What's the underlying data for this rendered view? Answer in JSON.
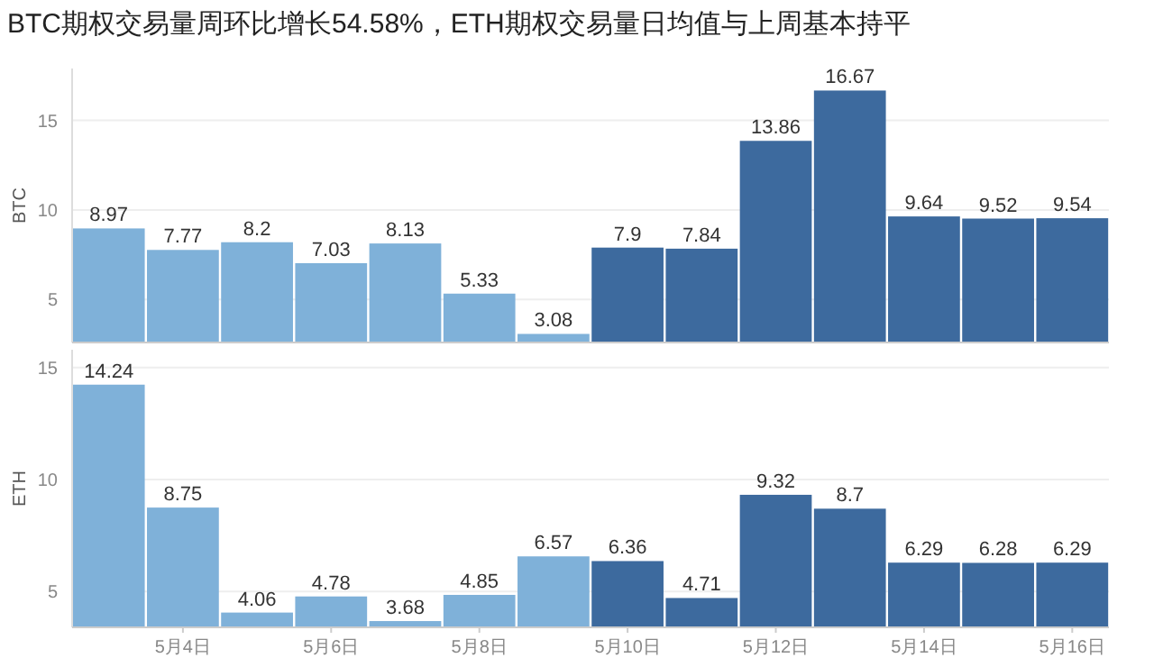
{
  "chart_data": [
    {
      "type": "bar",
      "title": "BTC期权交易量周环比增长54.58%，ETH期权交易量日均值与上周基本持平",
      "ylabel": "BTC",
      "categories": [
        null,
        null,
        null,
        null,
        null,
        null,
        null,
        null,
        null,
        null,
        null,
        null,
        null,
        null
      ],
      "values": [
        8.97,
        7.77,
        8.2,
        7.03,
        8.13,
        5.33,
        3.08,
        7.9,
        7.84,
        13.86,
        16.67,
        9.64,
        9.52,
        9.54
      ],
      "colors": [
        "#7fb1d9",
        "#7fb1d9",
        "#7fb1d9",
        "#7fb1d9",
        "#7fb1d9",
        "#7fb1d9",
        "#7fb1d9",
        "#3d6a9e",
        "#3d6a9e",
        "#3d6a9e",
        "#3d6a9e",
        "#3d6a9e",
        "#3d6a9e",
        "#3d6a9e"
      ],
      "ylim": [
        2.6,
        17.9
      ],
      "yticks": [
        5,
        10,
        15
      ],
      "grid": "y",
      "data_labels": true,
      "tick_labels": "y"
    },
    {
      "type": "bar",
      "ylabel": "ETH",
      "categories": [
        null,
        "5月4日",
        null,
        "5月6日",
        null,
        "5月8日",
        null,
        "5月10日",
        null,
        "5月12日",
        null,
        "5月14日",
        null,
        "5月16日"
      ],
      "values": [
        14.24,
        8.75,
        4.06,
        4.78,
        3.68,
        4.85,
        6.57,
        6.36,
        4.71,
        9.32,
        8.7,
        6.29,
        6.28,
        6.29
      ],
      "colors": [
        "#7fb1d9",
        "#7fb1d9",
        "#7fb1d9",
        "#7fb1d9",
        "#7fb1d9",
        "#7fb1d9",
        "#7fb1d9",
        "#3d6a9e",
        "#3d6a9e",
        "#3d6a9e",
        "#3d6a9e",
        "#3d6a9e",
        "#3d6a9e",
        "#3d6a9e"
      ],
      "ylim": [
        3.4,
        15.8
      ],
      "yticks": [
        5,
        10,
        15
      ],
      "grid": "y",
      "data_labels": true
    }
  ]
}
